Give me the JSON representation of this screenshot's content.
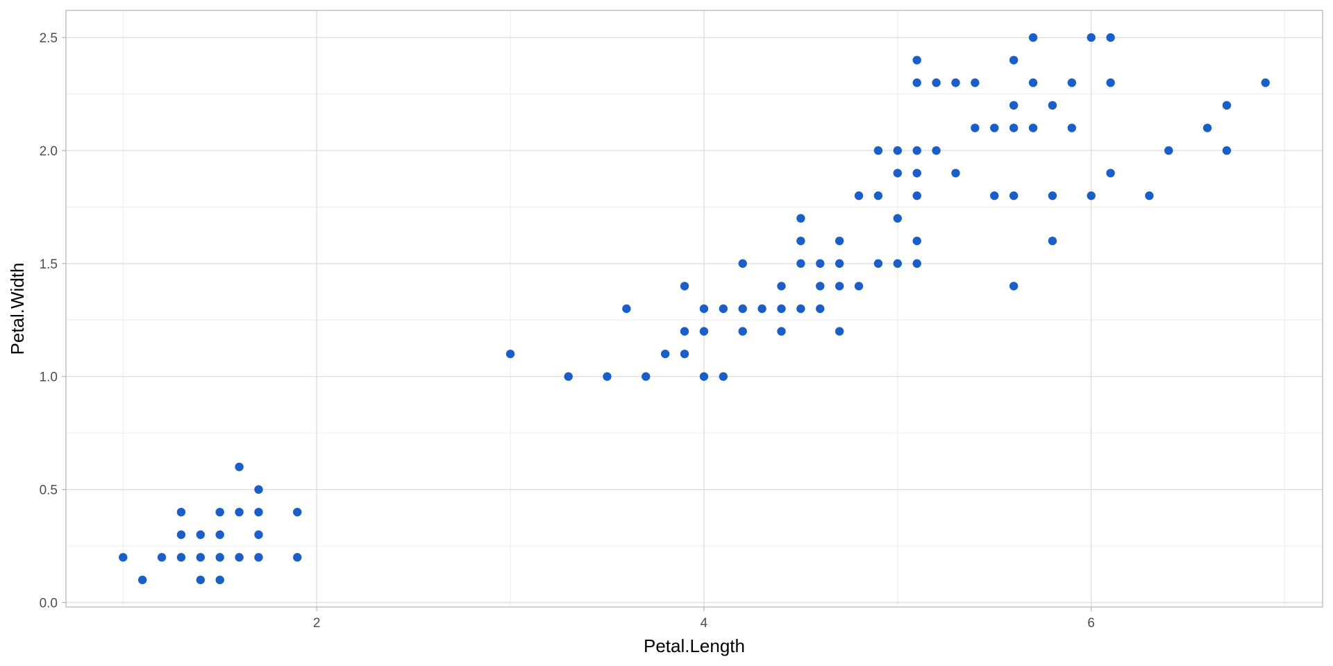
{
  "chart_data": {
    "type": "scatter",
    "xlabel": "Petal.Length",
    "ylabel": "Petal.Width",
    "xlim": [
      0.705,
      7.195
    ],
    "ylim": [
      -0.02,
      2.62
    ],
    "x_ticks": [
      2,
      4,
      6
    ],
    "x_minor_ticks": [
      1,
      3,
      5,
      7
    ],
    "y_ticks": [
      0.0,
      0.5,
      1.0,
      1.5,
      2.0,
      2.5
    ],
    "y_minor_ticks": [
      0.25,
      0.75,
      1.25,
      1.75,
      2.25
    ],
    "x_tick_labels": [
      "2",
      "4",
      "6"
    ],
    "y_tick_labels": [
      "0.0",
      "0.5",
      "1.0",
      "1.5",
      "2.0",
      "2.5"
    ],
    "grid": true,
    "colors": {
      "point": "#1a5fc8",
      "panel_border": "#b3b3b3",
      "grid_major": "#dcdcdc",
      "grid_minor": "#ececec"
    },
    "points": [
      [
        1.0,
        0.2
      ],
      [
        1.1,
        0.1
      ],
      [
        1.2,
        0.2
      ],
      [
        1.3,
        0.2
      ],
      [
        1.3,
        0.3
      ],
      [
        1.3,
        0.4
      ],
      [
        1.4,
        0.1
      ],
      [
        1.4,
        0.2
      ],
      [
        1.4,
        0.3
      ],
      [
        1.5,
        0.1
      ],
      [
        1.5,
        0.2
      ],
      [
        1.5,
        0.3
      ],
      [
        1.5,
        0.4
      ],
      [
        1.6,
        0.2
      ],
      [
        1.6,
        0.4
      ],
      [
        1.6,
        0.6
      ],
      [
        1.7,
        0.2
      ],
      [
        1.7,
        0.3
      ],
      [
        1.7,
        0.4
      ],
      [
        1.7,
        0.5
      ],
      [
        1.9,
        0.2
      ],
      [
        1.9,
        0.4
      ],
      [
        3.0,
        1.1
      ],
      [
        3.3,
        1.0
      ],
      [
        3.5,
        1.0
      ],
      [
        3.6,
        1.3
      ],
      [
        3.7,
        1.0
      ],
      [
        3.8,
        1.1
      ],
      [
        3.9,
        1.1
      ],
      [
        3.9,
        1.2
      ],
      [
        3.9,
        1.4
      ],
      [
        4.0,
        1.0
      ],
      [
        4.0,
        1.2
      ],
      [
        4.0,
        1.3
      ],
      [
        4.1,
        1.0
      ],
      [
        4.1,
        1.3
      ],
      [
        4.2,
        1.2
      ],
      [
        4.2,
        1.3
      ],
      [
        4.2,
        1.5
      ],
      [
        4.3,
        1.3
      ],
      [
        4.4,
        1.2
      ],
      [
        4.4,
        1.3
      ],
      [
        4.4,
        1.4
      ],
      [
        4.5,
        1.3
      ],
      [
        4.5,
        1.5
      ],
      [
        4.5,
        1.6
      ],
      [
        4.5,
        1.7
      ],
      [
        4.6,
        1.3
      ],
      [
        4.6,
        1.4
      ],
      [
        4.6,
        1.5
      ],
      [
        4.7,
        1.2
      ],
      [
        4.7,
        1.4
      ],
      [
        4.7,
        1.5
      ],
      [
        4.7,
        1.6
      ],
      [
        4.8,
        1.4
      ],
      [
        4.8,
        1.8
      ],
      [
        4.9,
        1.5
      ],
      [
        4.9,
        1.8
      ],
      [
        4.9,
        2.0
      ],
      [
        5.0,
        1.5
      ],
      [
        5.0,
        1.7
      ],
      [
        5.0,
        1.9
      ],
      [
        5.0,
        2.0
      ],
      [
        5.1,
        1.5
      ],
      [
        5.1,
        1.6
      ],
      [
        5.1,
        1.8
      ],
      [
        5.1,
        1.9
      ],
      [
        5.1,
        2.0
      ],
      [
        5.1,
        2.3
      ],
      [
        5.1,
        2.4
      ],
      [
        5.2,
        2.0
      ],
      [
        5.2,
        2.3
      ],
      [
        5.3,
        1.9
      ],
      [
        5.3,
        2.3
      ],
      [
        5.4,
        2.1
      ],
      [
        5.4,
        2.3
      ],
      [
        5.5,
        1.8
      ],
      [
        5.5,
        2.1
      ],
      [
        5.6,
        1.4
      ],
      [
        5.6,
        1.8
      ],
      [
        5.6,
        2.1
      ],
      [
        5.6,
        2.2
      ],
      [
        5.6,
        2.4
      ],
      [
        5.7,
        2.1
      ],
      [
        5.7,
        2.3
      ],
      [
        5.7,
        2.5
      ],
      [
        5.8,
        1.6
      ],
      [
        5.8,
        1.8
      ],
      [
        5.8,
        2.2
      ],
      [
        5.9,
        2.1
      ],
      [
        5.9,
        2.3
      ],
      [
        6.0,
        1.8
      ],
      [
        6.0,
        2.5
      ],
      [
        6.1,
        1.9
      ],
      [
        6.1,
        2.3
      ],
      [
        6.1,
        2.5
      ],
      [
        6.3,
        1.8
      ],
      [
        6.4,
        2.0
      ],
      [
        6.6,
        2.1
      ],
      [
        6.7,
        2.0
      ],
      [
        6.7,
        2.2
      ],
      [
        6.9,
        2.3
      ]
    ]
  }
}
